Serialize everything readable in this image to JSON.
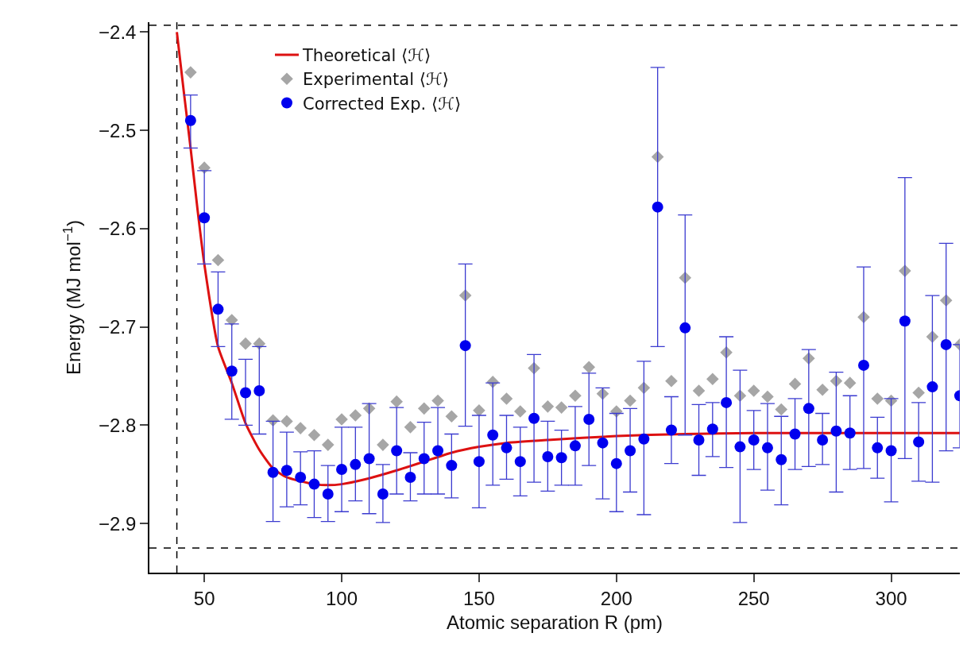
{
  "chart_data": {
    "type": "scatter",
    "xlabel": "Atomic separation R (pm)",
    "ylabel": "Energy (MJ mol$^{−1}$)",
    "xlim": [
      30,
      325
    ],
    "ylim": [
      -2.95,
      -2.39
    ],
    "xticks": [
      50,
      100,
      150,
      200,
      250,
      300
    ],
    "yticks": [
      {
        "value": -2.4,
        "label": "−2.4"
      },
      {
        "value": -2.5,
        "label": "−2.5"
      },
      {
        "value": -2.6,
        "label": "−2.6"
      },
      {
        "value": -2.7,
        "label": "−2.7"
      },
      {
        "value": -2.8,
        "label": "−2.8"
      },
      {
        "value": -2.9,
        "label": "−2.9"
      }
    ],
    "grid": false,
    "legend": "top left",
    "ref_lines": [
      {
        "axis": "y",
        "value": -2.393,
        "color": "#000000",
        "line_style": "dashed"
      },
      {
        "axis": "y",
        "value": -2.925,
        "color": "#000000",
        "line_style": "dashed"
      },
      {
        "axis": "x",
        "value": 40,
        "color": "#000000",
        "line_style": "dashed"
      }
    ],
    "series": [
      {
        "name": "Theoretical ⟨ℋ⟩",
        "type": "line",
        "color": "#dd1111",
        "marker": "none",
        "line_style": "solid",
        "x": [
          40,
          42.5,
          45,
          47.5,
          50,
          55,
          60,
          65,
          70,
          75,
          80,
          85,
          90,
          95,
          100,
          110,
          120,
          130,
          140,
          150,
          160,
          175,
          200,
          225,
          250,
          300,
          325
        ],
        "values": [
          -2.4,
          -2.46,
          -2.518,
          -2.58,
          -2.636,
          -2.72,
          -2.757,
          -2.798,
          -2.825,
          -2.844,
          -2.853,
          -2.857,
          -2.86,
          -2.861,
          -2.86,
          -2.854,
          -2.846,
          -2.837,
          -2.828,
          -2.822,
          -2.818,
          -2.815,
          -2.811,
          -2.809,
          -2.808,
          -2.808,
          -2.808
        ]
      },
      {
        "name": "Experimental ⟨ℋ⟩",
        "color": "#a6a6a6",
        "marker": "diamond",
        "x": [
          45,
          50,
          55,
          60,
          65,
          70,
          75,
          80,
          85,
          90,
          95,
          100,
          105,
          110,
          115,
          120,
          125,
          130,
          135,
          140,
          145,
          150,
          155,
          160,
          165,
          170,
          175,
          180,
          185,
          190,
          195,
          200,
          205,
          210,
          215,
          220,
          225,
          230,
          235,
          240,
          245,
          250,
          255,
          260,
          265,
          270,
          275,
          280,
          285,
          290,
          295,
          300,
          305,
          310,
          315,
          320,
          325
        ],
        "values": [
          -2.441,
          -2.538,
          -2.632,
          -2.693,
          -2.717,
          -2.717,
          -2.795,
          -2.796,
          -2.803,
          -2.81,
          -2.82,
          -2.794,
          -2.79,
          -2.783,
          -2.82,
          -2.776,
          -2.802,
          -2.783,
          -2.775,
          -2.791,
          -2.668,
          -2.785,
          -2.756,
          -2.773,
          -2.786,
          -2.742,
          -2.781,
          -2.782,
          -2.77,
          -2.741,
          -2.768,
          -2.786,
          -2.775,
          -2.762,
          -2.527,
          -2.755,
          -2.65,
          -2.765,
          -2.753,
          -2.726,
          -2.77,
          -2.765,
          -2.771,
          -2.784,
          -2.758,
          -2.732,
          -2.764,
          -2.755,
          -2.757,
          -2.69,
          -2.773,
          -2.775,
          -2.643,
          -2.767,
          -2.71,
          -2.673,
          -2.718
        ]
      },
      {
        "name": "Corrected Exp. ⟨ℋ⟩",
        "color": "#0000ee",
        "marker": "circle",
        "x": [
          45,
          50,
          55,
          60,
          65,
          70,
          75,
          80,
          85,
          90,
          95,
          100,
          105,
          110,
          115,
          120,
          125,
          130,
          135,
          140,
          145,
          150,
          155,
          160,
          165,
          170,
          175,
          180,
          185,
          190,
          195,
          200,
          205,
          210,
          215,
          220,
          225,
          230,
          235,
          240,
          245,
          250,
          255,
          260,
          265,
          270,
          275,
          280,
          285,
          290,
          295,
          300,
          305,
          310,
          315,
          320,
          325
        ],
        "values": [
          -2.49,
          -2.589,
          -2.682,
          -2.745,
          -2.767,
          -2.765,
          -2.848,
          -2.846,
          -2.853,
          -2.86,
          -2.87,
          -2.845,
          -2.84,
          -2.834,
          -2.87,
          -2.826,
          -2.853,
          -2.834,
          -2.826,
          -2.841,
          -2.719,
          -2.837,
          -2.81,
          -2.823,
          -2.837,
          -2.793,
          -2.832,
          -2.833,
          -2.821,
          -2.794,
          -2.818,
          -2.839,
          -2.826,
          -2.814,
          -2.578,
          -2.805,
          -2.701,
          -2.815,
          -2.804,
          -2.777,
          -2.822,
          -2.815,
          -2.823,
          -2.835,
          -2.809,
          -2.783,
          -2.815,
          -2.806,
          -2.808,
          -2.739,
          -2.823,
          -2.826,
          -2.694,
          -2.817,
          -2.761,
          -2.718,
          -2.77
        ],
        "errors": [
          [
            -2.518,
            -2.464
          ],
          [
            -2.636,
            -2.541
          ],
          [
            -2.72,
            -2.644
          ],
          [
            -2.794,
            -2.697
          ],
          [
            -2.8,
            -2.733
          ],
          [
            -2.809,
            -2.72
          ],
          [
            -2.898,
            -2.796
          ],
          [
            -2.883,
            -2.807
          ],
          [
            -2.881,
            -2.827
          ],
          [
            -2.894,
            -2.826
          ],
          [
            -2.898,
            -2.841
          ],
          [
            -2.888,
            -2.802
          ],
          [
            -2.877,
            -2.802
          ],
          [
            -2.89,
            -2.778
          ],
          [
            -2.899,
            -2.84
          ],
          [
            -2.87,
            -2.782
          ],
          [
            -2.877,
            -2.828
          ],
          [
            -2.87,
            -2.797
          ],
          [
            -2.87,
            -2.782
          ],
          [
            -2.874,
            -2.809
          ],
          [
            -2.801,
            -2.636
          ],
          [
            -2.884,
            -2.79
          ],
          [
            -2.861,
            -2.757
          ],
          [
            -2.855,
            -2.79
          ],
          [
            -2.872,
            -2.802
          ],
          [
            -2.858,
            -2.728
          ],
          [
            -2.867,
            -2.796
          ],
          [
            -2.861,
            -2.805
          ],
          [
            -2.861,
            -2.781
          ],
          [
            -2.841,
            -2.747
          ],
          [
            -2.875,
            -2.762
          ],
          [
            -2.888,
            -2.788
          ],
          [
            -2.868,
            -2.783
          ],
          [
            -2.891,
            -2.735
          ],
          [
            -2.72,
            -2.436
          ],
          [
            -2.839,
            -2.771
          ],
          [
            -2.81,
            -2.586
          ],
          [
            -2.851,
            -2.779
          ],
          [
            -2.832,
            -2.777
          ],
          [
            -2.843,
            -2.71
          ],
          [
            -2.899,
            -2.744
          ],
          [
            -2.845,
            -2.785
          ],
          [
            -2.866,
            -2.778
          ],
          [
            -2.881,
            -2.791
          ],
          [
            -2.845,
            -2.773
          ],
          [
            -2.842,
            -2.723
          ],
          [
            -2.84,
            -2.788
          ],
          [
            -2.868,
            -2.746
          ],
          [
            -2.845,
            -2.77
          ],
          [
            -2.844,
            -2.639
          ],
          [
            -2.854,
            -2.792
          ],
          [
            -2.878,
            -2.773
          ],
          [
            -2.834,
            -2.548
          ],
          [
            -2.857,
            -2.777
          ],
          [
            -2.858,
            -2.668
          ],
          [
            -2.826,
            -2.615
          ],
          [
            -2.823,
            -2.718
          ]
        ]
      }
    ]
  }
}
